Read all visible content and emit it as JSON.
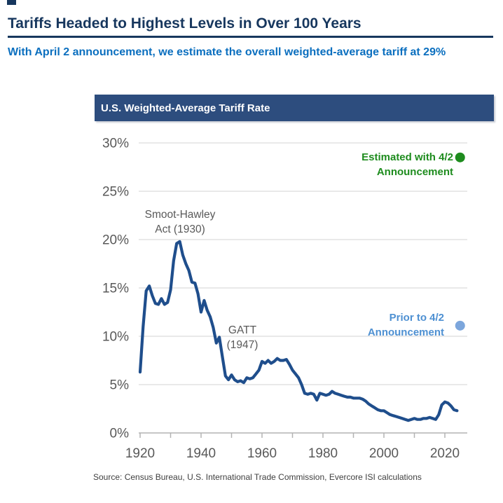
{
  "header": {
    "title": "Tariffs Headed to Highest Levels in Over 100 Years",
    "subtitle": "With April 2 announcement, we estimate the overall weighted-average tariff at 29%"
  },
  "panel_title": "U.S. Weighted-Average Tariff Rate",
  "source": "Source: Census Bureau, U.S. International Trade Commission, Evercore ISI calculations",
  "colors": {
    "title_navy": "#17375E",
    "subtitle_blue": "#0B6FBF",
    "panel_bg": "#2D4D7E",
    "line_blue": "#1F4E8C",
    "green": "#1E8C1E",
    "light_blue": "#7CA6DC",
    "label_gray": "#595959",
    "gridline_gray": "#DCDCDC",
    "axis_gray": "#B3B3B3"
  },
  "chart_data": {
    "type": "line",
    "title": "U.S. Weighted-Average Tariff Rate",
    "series_name": "U.S. weighted-average tariff rate (%)",
    "xlabel": "",
    "ylabel": "",
    "ylim": [
      0,
      30
    ],
    "xlim": [
      1920,
      2027
    ],
    "grid": "horizontal",
    "legend": "none",
    "x": [
      1920,
      1921,
      1922,
      1923,
      1924,
      1925,
      1926,
      1927,
      1928,
      1929,
      1930,
      1931,
      1932,
      1933,
      1934,
      1935,
      1936,
      1937,
      1938,
      1939,
      1940,
      1941,
      1942,
      1943,
      1944,
      1945,
      1946,
      1947,
      1948,
      1949,
      1950,
      1951,
      1952,
      1953,
      1954,
      1955,
      1956,
      1957,
      1958,
      1959,
      1960,
      1961,
      1962,
      1963,
      1964,
      1965,
      1966,
      1967,
      1968,
      1969,
      1970,
      1971,
      1972,
      1973,
      1974,
      1975,
      1976,
      1977,
      1978,
      1979,
      1980,
      1981,
      1982,
      1983,
      1984,
      1985,
      1986,
      1987,
      1988,
      1989,
      1990,
      1991,
      1992,
      1993,
      1994,
      1995,
      1996,
      1997,
      1998,
      1999,
      2000,
      2001,
      2002,
      2003,
      2004,
      2005,
      2006,
      2007,
      2008,
      2009,
      2010,
      2011,
      2012,
      2013,
      2014,
      2015,
      2016,
      2017,
      2018,
      2019,
      2020,
      2021,
      2022,
      2023,
      2024
    ],
    "values": [
      6.3,
      11.0,
      14.7,
      15.2,
      14.2,
      13.4,
      13.3,
      13.9,
      13.3,
      13.5,
      14.8,
      17.8,
      19.6,
      19.8,
      18.4,
      17.5,
      16.8,
      15.6,
      15.5,
      14.4,
      12.5,
      13.7,
      12.7,
      12.0,
      10.9,
      9.3,
      9.9,
      7.9,
      5.9,
      5.5,
      6.0,
      5.5,
      5.3,
      5.4,
      5.2,
      5.7,
      5.6,
      5.7,
      6.1,
      6.5,
      7.4,
      7.2,
      7.5,
      7.2,
      7.4,
      7.7,
      7.5,
      7.5,
      7.6,
      7.1,
      6.5,
      6.1,
      5.7,
      5.0,
      4.1,
      4.0,
      4.1,
      4.0,
      3.4,
      4.1,
      4.0,
      3.9,
      4.0,
      4.3,
      4.1,
      4.0,
      3.9,
      3.8,
      3.7,
      3.7,
      3.6,
      3.6,
      3.6,
      3.5,
      3.3,
      3.0,
      2.8,
      2.6,
      2.4,
      2.3,
      2.3,
      2.1,
      1.9,
      1.8,
      1.7,
      1.6,
      1.5,
      1.4,
      1.3,
      1.4,
      1.5,
      1.4,
      1.4,
      1.5,
      1.5,
      1.6,
      1.5,
      1.4,
      1.9,
      2.9,
      3.2,
      3.1,
      2.8,
      2.4,
      2.3
    ],
    "y_ticks": [
      {
        "value": 0,
        "label": "0%"
      },
      {
        "value": 5,
        "label": "5%"
      },
      {
        "value": 10,
        "label": "10%"
      },
      {
        "value": 15,
        "label": "15%"
      },
      {
        "value": 20,
        "label": "20%"
      },
      {
        "value": 25,
        "label": "25%"
      },
      {
        "value": 30,
        "label": "30%"
      }
    ],
    "x_ticks": [
      {
        "value": 1920,
        "label": "1920"
      },
      {
        "value": 1930,
        "label": ""
      },
      {
        "value": 1940,
        "label": "1940"
      },
      {
        "value": 1950,
        "label": ""
      },
      {
        "value": 1960,
        "label": "1960"
      },
      {
        "value": 1970,
        "label": ""
      },
      {
        "value": 1980,
        "label": "1980"
      },
      {
        "value": 1990,
        "label": ""
      },
      {
        "value": 2000,
        "label": "2000"
      },
      {
        "value": 2010,
        "label": ""
      },
      {
        "value": 2020,
        "label": "2020"
      }
    ],
    "annotations": [
      {
        "line1": "Smoot-Hawley",
        "line2": "Act (1930)",
        "year": 1930,
        "value": 19.8
      },
      {
        "line1": "GATT",
        "line2": "(1947)",
        "year": 1947,
        "value": 7.9
      }
    ],
    "markers": [
      {
        "name": "estimated",
        "label_line1": "Estimated with 4/2",
        "label_line2": "Announcement",
        "year": 2025,
        "value": 28.5,
        "color": "#1E8C1E",
        "text_color": "#1E8C1E"
      },
      {
        "name": "prior",
        "label_line1": "Prior to 4/2",
        "label_line2": "Announcement",
        "year": 2025,
        "value": 11.1,
        "color": "#7CA6DC",
        "text_color": "#4E90D2"
      }
    ]
  }
}
